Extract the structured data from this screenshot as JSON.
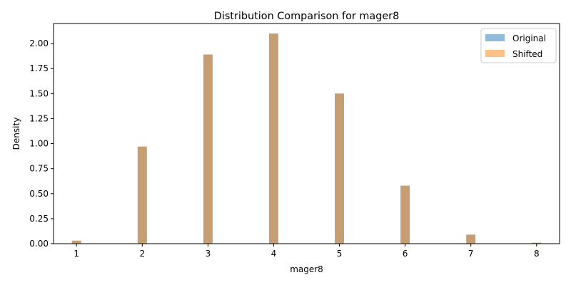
{
  "chart_data": {
    "type": "bar",
    "title": "Distribution Comparison for mager8",
    "xlabel": "mager8",
    "ylabel": "Density",
    "xlim": [
      0.65,
      8.35
    ],
    "ylim": [
      0,
      2.2
    ],
    "xticks": [
      "1",
      "2",
      "3",
      "4",
      "5",
      "6",
      "7",
      "8"
    ],
    "yticks": [
      "0.00",
      "0.25",
      "0.50",
      "0.75",
      "1.00",
      "1.25",
      "1.50",
      "1.75",
      "2.00"
    ],
    "grid": false,
    "legend_position": "top-right",
    "x": [
      1,
      2,
      3,
      4,
      5,
      6,
      7,
      8
    ],
    "bar_width": 0.14,
    "series": [
      {
        "name": "Original",
        "color": "#1f77b4",
        "alpha": 0.5,
        "values": [
          0.03,
          0.97,
          1.89,
          2.1,
          1.5,
          0.58,
          0.09,
          0.01
        ]
      },
      {
        "name": "Shifted",
        "color": "#ff7f0e",
        "alpha": 0.5,
        "values": [
          0.03,
          0.97,
          1.89,
          2.1,
          1.5,
          0.58,
          0.09,
          0.01
        ]
      }
    ]
  }
}
